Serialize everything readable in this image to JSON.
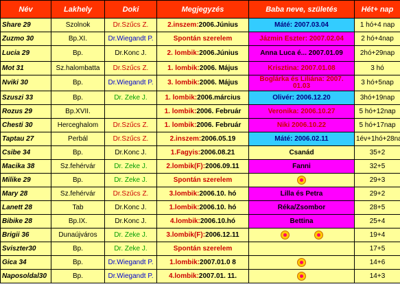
{
  "headers": [
    "Név",
    "Lakhely",
    "Doki",
    "Megjegyzés",
    "Baba neve, születés",
    "Hét+ nap"
  ],
  "rows": [
    {
      "name": "Share 29",
      "city": "Szolnok",
      "doc": "Dr.Szűcs Z.",
      "doc_color": "red",
      "note_kw": "2.inszem:",
      "note_rest": "2006.Június",
      "baby": "Máté: 2007.03.04",
      "baby_bg": "cyan",
      "weeks": "1 hó+4 nap"
    },
    {
      "name": "Zuzmo 30",
      "city": "Bp.XI.",
      "doc": "Dr.Wiegandt P.",
      "doc_color": "blue",
      "note_kw": "Spontán szerelem",
      "note_rest": "",
      "baby": "Jázmin Eszter: 2007.02.04",
      "baby_bg": "magenta",
      "weeks": "2 hó+4nap"
    },
    {
      "name": "Lucia 29",
      "city": "Bp.",
      "doc": "Dr.Konc J.",
      "doc_color": "black",
      "note_kw": "2. lombik:",
      "note_rest": "2006.Június",
      "baby": "Anna Luca é... 2007.01.09",
      "baby_bg": "magenta",
      "weeks": "2hó+29nap"
    },
    {
      "name": "Mot 31",
      "city": "Sz.halombatta",
      "doc": "Dr.Szűcs Z.",
      "doc_color": "red",
      "note_kw": "1. lombik:",
      "note_rest": "2006. Május",
      "baby": "Krisztina: 2007.01.08",
      "baby_bg": "magenta",
      "weeks": "3 hó"
    },
    {
      "name": "Nviki 30",
      "city": "Bp.",
      "doc": "Dr.Wiegandt P.",
      "doc_color": "blue",
      "note_kw": "3. lombik:",
      "note_rest": "2006. Május",
      "baby": "Boglárka és Liliána: 2007. 01.03",
      "baby_bg": "magenta",
      "weeks": "3 hó+5nap"
    },
    {
      "name": "Szuszi 33",
      "city": "Bp.",
      "doc": "Dr. Zeke J.",
      "doc_color": "green",
      "note_kw": "1. lombik:",
      "note_rest": "2006.március",
      "baby": "Olivér: 2006.12.20",
      "baby_bg": "cyan",
      "weeks": "3hó+19nap"
    },
    {
      "name": "Rozus 29",
      "city": "Bp.XVII.",
      "doc": "",
      "doc_color": "black",
      "note_kw": "1. lombik:",
      "note_rest": "2006. Február",
      "baby": "Veronika: 2006.10.27",
      "baby_bg": "magenta",
      "weeks": "5 hó+12nap"
    },
    {
      "name": "Chesti 30",
      "city": "Herceghalom",
      "doc": "Dr.Szűcs Z.",
      "doc_color": "red",
      "note_kw": "1. lombik:",
      "note_rest": "2006. Február",
      "baby": "Niki 2006.10.22",
      "baby_bg": "magenta",
      "weeks": "5 hó+17nap"
    },
    {
      "name": "Taptau 27",
      "city": "Perbál",
      "doc": "Dr.Szűcs Z.",
      "doc_color": "red",
      "note_kw": "2.inszem:",
      "note_rest": "2006.05.19",
      "baby": "Máté: 2006.02.11",
      "baby_bg": "cyan",
      "weeks": "1év+1hó+28nap"
    },
    {
      "name": "Csibe 34",
      "city": "Bp.",
      "doc": "Dr.Konc J.",
      "doc_color": "black",
      "note_kw": "1.Fagyis:",
      "note_rest": "2006.08.21",
      "baby": "Csanád",
      "baby_bg": "yellow",
      "weeks": "35+2"
    },
    {
      "name": "Macika 38",
      "city": "Sz.fehérvár",
      "doc": "Dr. Zeke J.",
      "doc_color": "green",
      "note_kw": "2.lombik(F):",
      "note_rest": "2006.09.11",
      "baby": "Fanni",
      "baby_bg": "magenta",
      "weeks": "32+5"
    },
    {
      "name": "Milike 29",
      "city": "Bp.",
      "doc": "Dr. Zeke J.",
      "doc_color": "green",
      "note_kw": "Spontán szerelem",
      "note_rest": "",
      "baby": "",
      "baby_bg": "yellow",
      "smiles": 1,
      "weeks": "29+3"
    },
    {
      "name": "Mary 28",
      "city": "Sz.fehérvár",
      "doc": "Dr.Szűcs Z.",
      "doc_color": "red",
      "note_kw": "3.lombik:",
      "note_rest": "2006.10. hó",
      "baby": "Lilla és Petra",
      "baby_bg": "magenta",
      "weeks": "29+2"
    },
    {
      "name": "Lanett 28",
      "city": "Tab",
      "doc": "Dr.Konc J.",
      "doc_color": "black",
      "note_kw": "1.lombik:",
      "note_rest": "2006.10. hó",
      "baby": "Réka/Zsombor",
      "baby_bg": "magenta",
      "weeks": "28+5"
    },
    {
      "name": "Bibike 28",
      "city": "Bp.IX.",
      "doc": "Dr.Konc J.",
      "doc_color": "black",
      "note_kw": "4.lombik:",
      "note_rest": "2006.10.hó",
      "baby": "Bettina",
      "baby_bg": "magenta",
      "weeks": "25+4"
    },
    {
      "name": "Brigii 36",
      "city": "Dunaújváros",
      "doc": "Dr. Zeke J.",
      "doc_color": "green",
      "note_kw": "3.lombik(F):",
      "note_rest": "2006.12.11",
      "baby": "",
      "baby_bg": "yellow",
      "smiles": 2,
      "weeks": "19+4"
    },
    {
      "name": "Sviszter30",
      "city": "Bp.",
      "doc": "Dr. Zeke J.",
      "doc_color": "green",
      "note_kw": "Spontán szerelem",
      "note_rest": "",
      "baby": "",
      "baby_bg": "yellow",
      "weeks": "17+5"
    },
    {
      "name": "Gica 34",
      "city": "Bp.",
      "doc": "Dr.Wiegandt P.",
      "doc_color": "blue",
      "note_kw": "1.lombik:",
      "note_rest": "2007.01.0 8",
      "baby": "",
      "baby_bg": "yellow",
      "smiles": 1,
      "weeks": "14+6"
    },
    {
      "name": "Naposoldal30",
      "city": "Bp.",
      "doc": "Dr.Wiegandt P.",
      "doc_color": "blue",
      "note_kw": "4.lombik:",
      "note_rest": "2007.01. 11.",
      "baby": "",
      "baby_bg": "yellow",
      "smiles": 1,
      "weeks": "14+3"
    }
  ]
}
